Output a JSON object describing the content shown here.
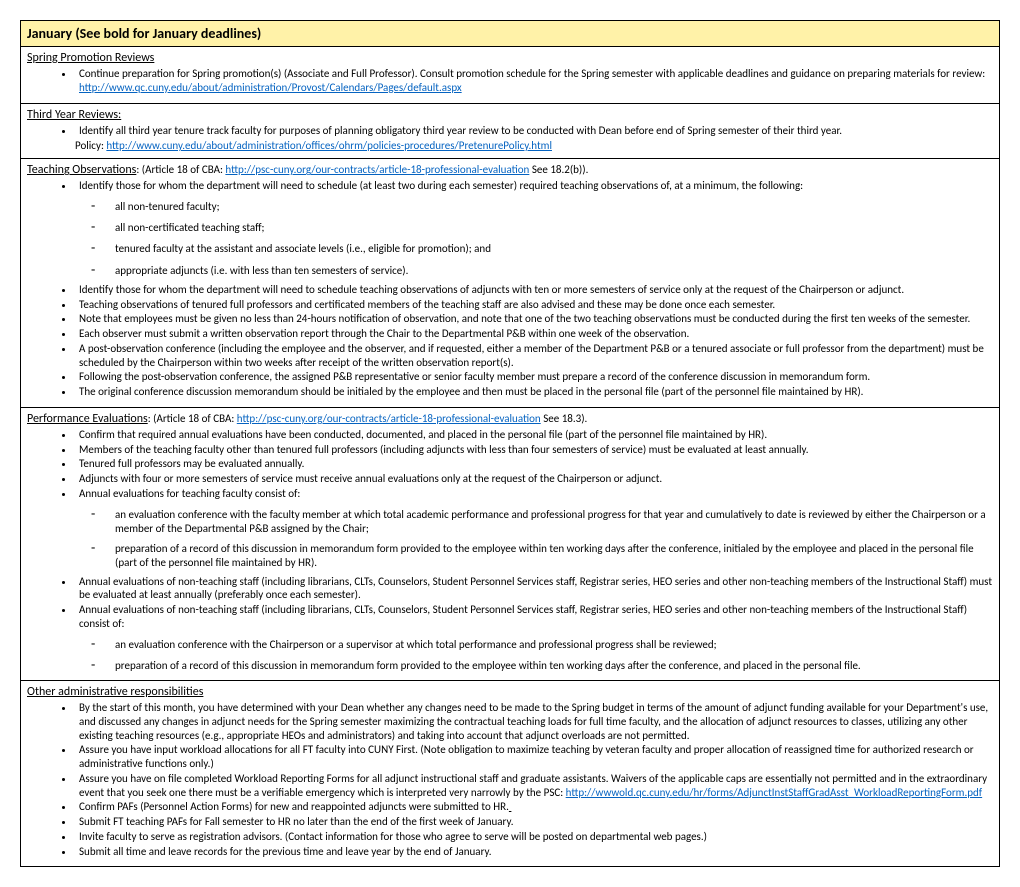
{
  "colors": {
    "header_bg": "#fff2a8",
    "link": "#0563c1",
    "border": "#000000",
    "text": "#000000",
    "bg": "#ffffff"
  },
  "header": {
    "title": "January (See bold for January deadlines)"
  },
  "sections": {
    "spring": {
      "title": "Spring Promotion Reviews",
      "b0": "Continue preparation for Spring promotion(s) (Associate and Full Professor). Consult promotion schedule for the Spring semester with applicable deadlines and guidance on preparing materials for review:",
      "link0": "http://www.qc.cuny.edu/about/administration/Provost/Calendars/Pages/default.aspx"
    },
    "thirdyear": {
      "title": "Third Year Reviews:",
      "b0": "Identify all third year tenure track faculty for purposes of planning obligatory third year review to be conducted with Dean before end of Spring semester of their third year.",
      "policy_label": "Policy: ",
      "policy_link": "http://www.cuny.edu/about/administration/offices/ohrm/policies-procedures/PretenurePolicy.html"
    },
    "teaching": {
      "title": "Teaching Observations",
      "after_title": ": (Article 18 of CBA: ",
      "link": "http://psc-cuny.org/our-contracts/article-18-professional-evaluation",
      "after_link": "  See 18.2(b)).",
      "b0": "Identify those for whom the department will need to schedule (at least two during each semester) required teaching observations of, at a minimum, the following:",
      "sub0": "all non-tenured faculty;",
      "sub1": "all non-certificated teaching staff;",
      "sub2": "tenured faculty at the assistant and associate levels (i.e., eligible for promotion); and",
      "sub3": "appropriate adjuncts (i.e. with less than ten semesters of service).",
      "b1": "Identify those for whom the department will need to schedule teaching observations of adjuncts with ten or more semesters of service only at the request of the Chairperson or adjunct.",
      "b2": "Teaching observations of tenured full professors and certificated members of the teaching staff are also advised and these may be done once each semester.",
      "b3": "Note that employees must be given no less than 24-hours notification of observation, and note that one of the two teaching observations must be conducted during the first ten weeks of the semester.",
      "b4": "Each observer must submit a written observation report through the Chair to the Departmental P&B within one week of the observation.",
      "b5": "A post-observation conference (including the employee and the observer, and if requested, either a member of the Department P&B or a tenured associate or full professor from the department) must be scheduled by the Chairperson within two weeks after receipt of the written observation report(s).",
      "b6": "Following the post-observation conference, the assigned P&B representative or senior faculty member must prepare a record of the conference discussion in memorandum form.",
      "b7": "The original conference discussion memorandum should be initialed by the employee and then must be placed in the personal file (part of the personnel file maintained by HR)."
    },
    "perf": {
      "title": "Performance Evaluations",
      "after_title": ":  (Article 18 of CBA: ",
      "link": "http://psc-cuny.org/our-contracts/article-18-professional-evaluation",
      "after_link": "  See 18.3).",
      "b0": "Confirm that required annual evaluations have been conducted, documented, and placed in the personal file (part of the personnel file maintained by HR).",
      "b1": "Members of the teaching faculty other than tenured full professors (including adjuncts with less than four semesters of service) must be evaluated at least annually.",
      "b2": "Tenured full professors may be evaluated annually.",
      "b3": "Adjuncts with four or more semesters of service must receive annual evaluations only at the request of the Chairperson or adjunct.",
      "b4": "Annual evaluations for teaching faculty consist of:",
      "sub0": "an evaluation conference with the faculty member at which total academic performance and professional progress for that year and cumulatively to date is reviewed by either the Chairperson or a member of the Departmental P&B assigned by the Chair;",
      "sub1": "preparation of a record of this discussion in memorandum form provided to the employee within ten working days after the conference, initialed by the employee and placed in the personal file (part of the personnel file maintained by HR).",
      "b5": "Annual evaluations of non-teaching staff (including librarians, CLTs, Counselors, Student Personnel Services staff, Registrar series, HEO series and other non-teaching members of the Instructional Staff) must be evaluated at least annually (preferably once each semester).",
      "b6": "Annual evaluations of non-teaching staff (including librarians, CLTs, Counselors, Student Personnel Services staff, Registrar series, HEO series and other non-teaching members of the Instructional Staff) consist of:",
      "sub2": "an evaluation conference with the Chairperson or a supervisor at which total performance and professional progress shall be reviewed;",
      "sub3": "preparation of a record of this discussion in memorandum form provided to the employee within ten working days after the conference, and placed in the personal file."
    },
    "admin": {
      "title": "Other administrative responsibilities",
      "b0": "By the start of this month, you have determined with your Dean whether any changes need to be made to the Spring budget in terms of the amount of adjunct funding available for your Department's use, and discussed any changes in adjunct needs for the Spring semester maximizing the contractual teaching loads for full time faculty, and the allocation of adjunct resources to classes, utilizing any other existing teaching resources (e.g., appropriate HEOs and administrators) and taking into account that adjunct overloads are not permitted.",
      "b1": "Assure you have input workload allocations for all FT faculty into CUNY First. (Note obligation to maximize teaching by veteran faculty and proper allocation of reassigned time for authorized research or administrative functions only.)",
      "b2": "Assure you have on file completed Workload Reporting Forms for all adjunct instructional staff and graduate assistants. Waivers of the applicable caps are essentially not permitted and in the extraordinary event that you seek one there must be a verifiable emergency which is interpreted very narrowly by the PSC: ",
      "b2_link": "http://wwwold.qc.cuny.edu/hr/forms/AdjunctInstStaffGradAsst_WorkloadReportingForm.pdf",
      "b3": "Confirm PAFs (Personnel Action Forms) for new and reappointed adjuncts were submitted to HR.",
      "b4": "Submit FT teaching PAFs for Fall semester to HR no later than the end of the first week of January.",
      "b5": "Invite faculty to serve as registration advisors. (Contact information for those who agree to serve will be posted on departmental web pages.)",
      "b6": "Submit all time and leave records for the previous time and leave year by the end of January."
    }
  }
}
